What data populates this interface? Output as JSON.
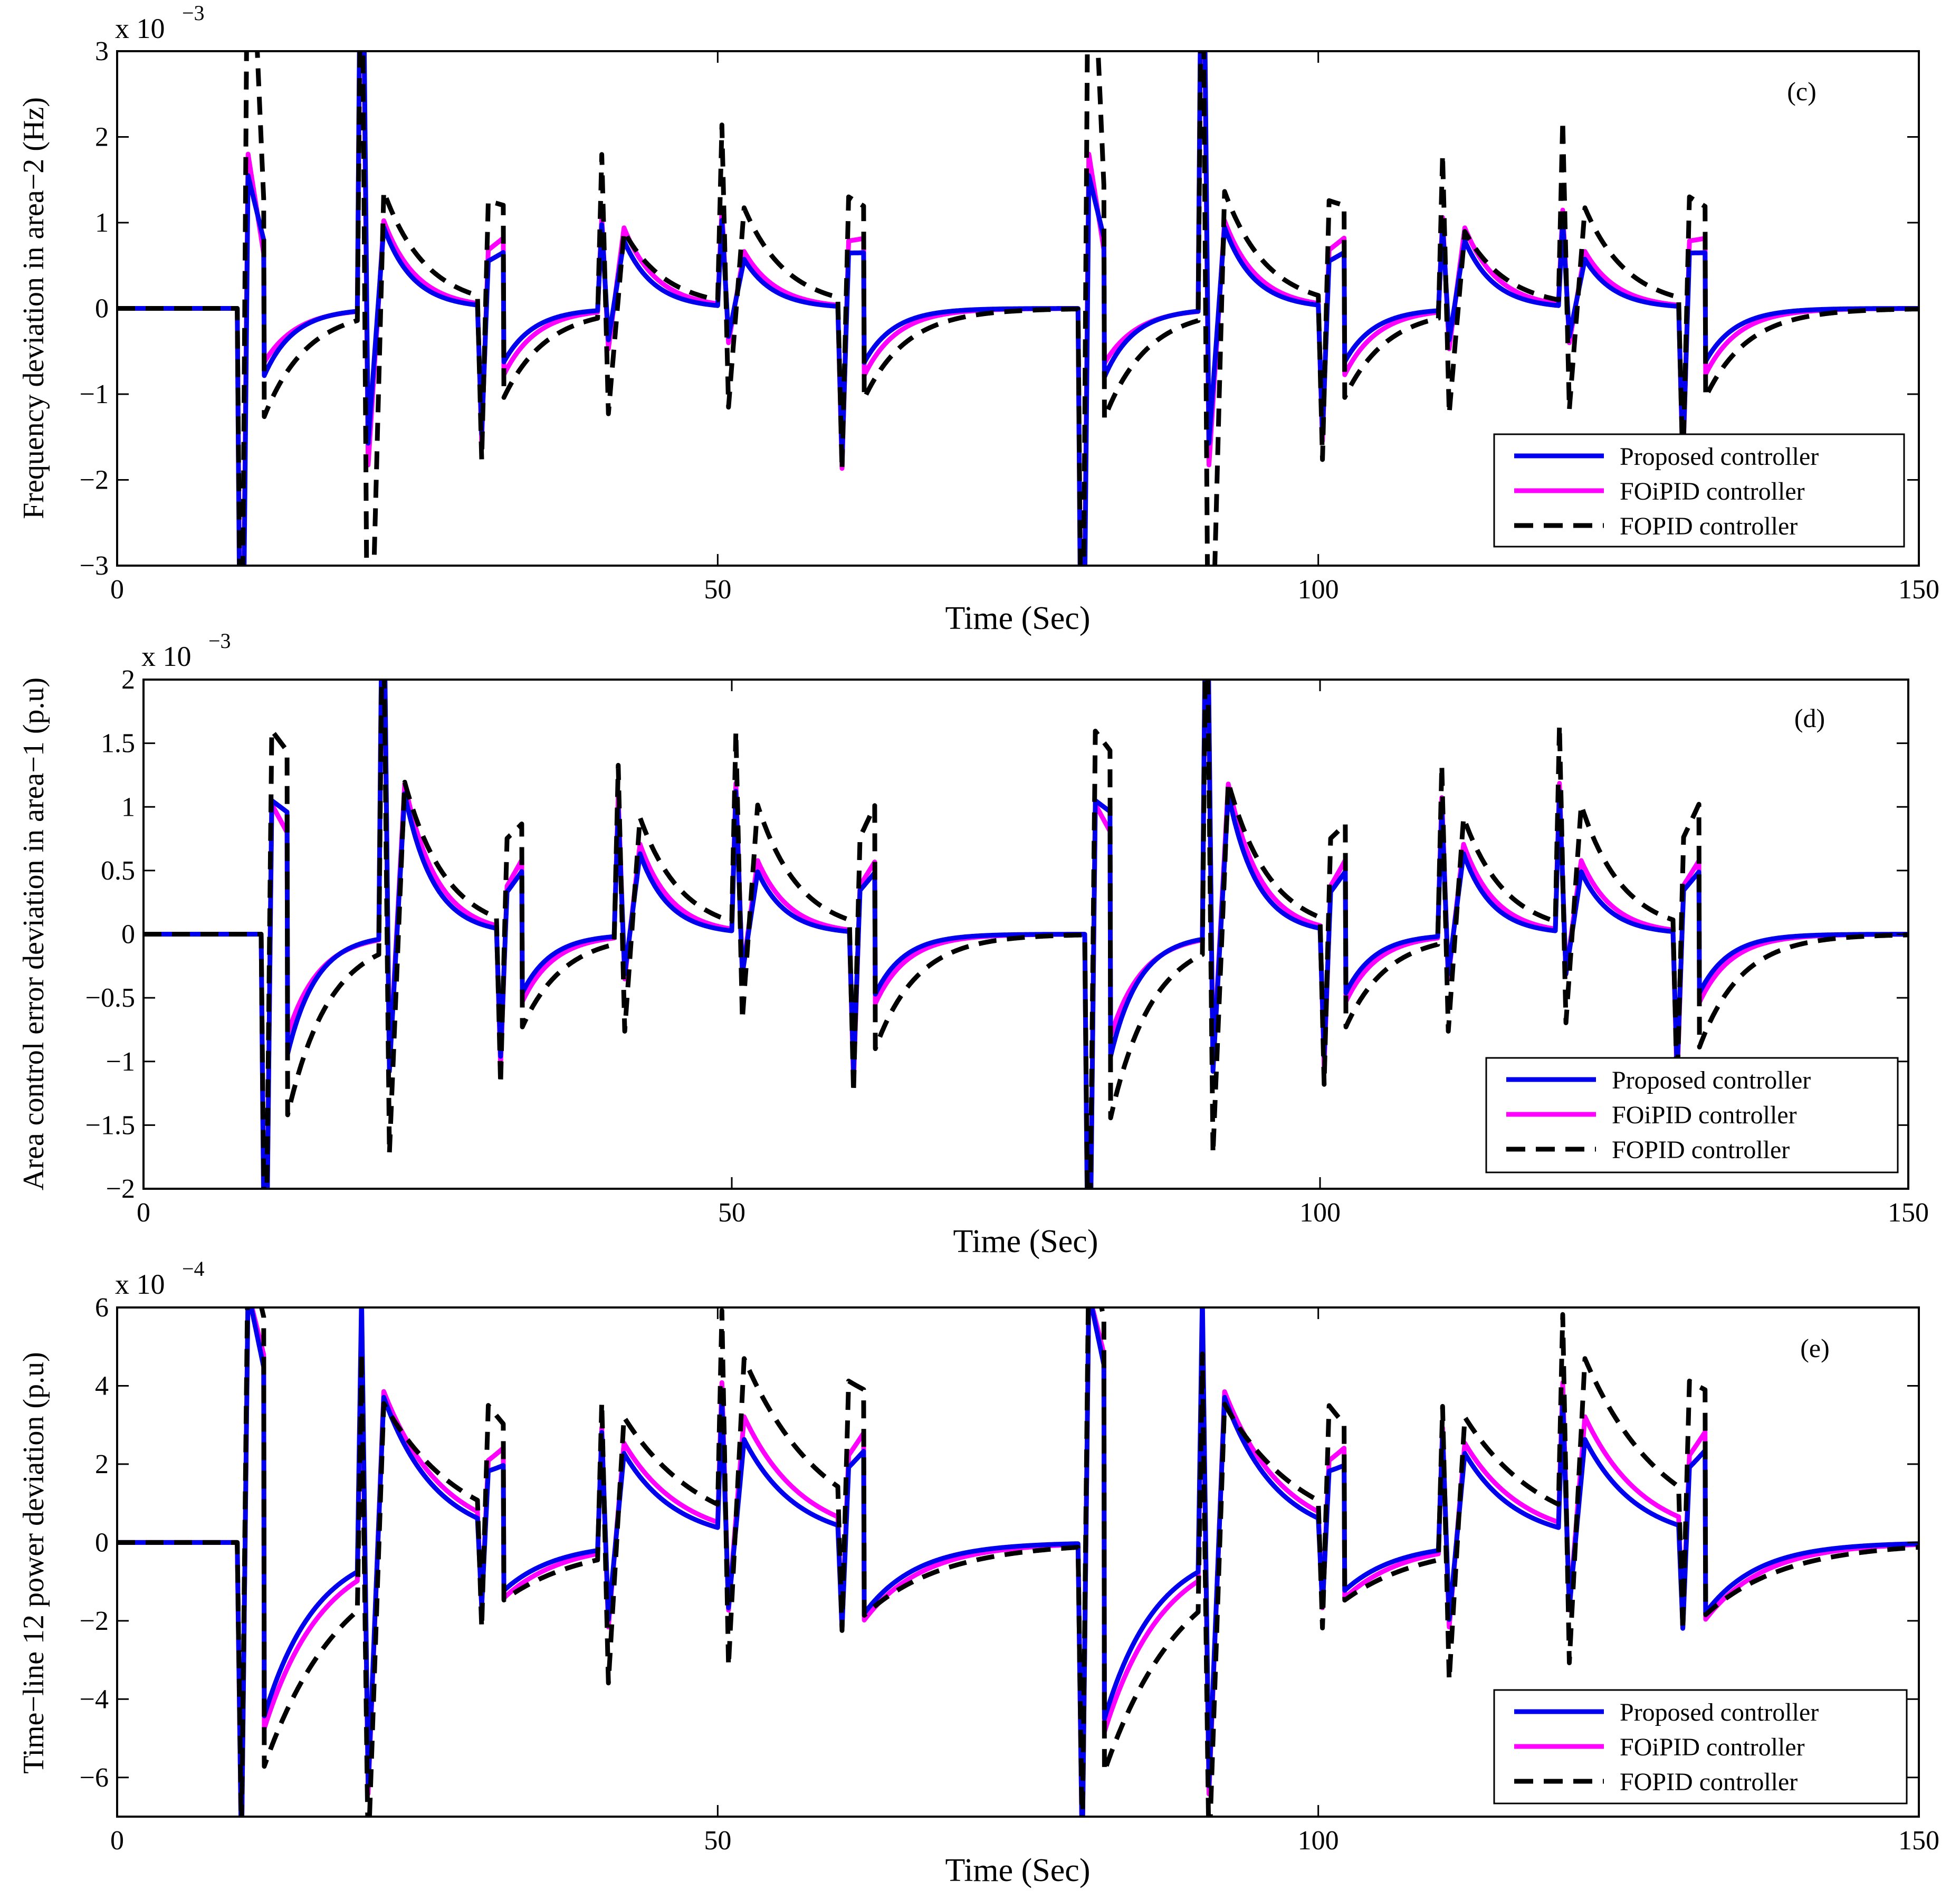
{
  "colors": {
    "proposed": "#0000ee",
    "foipid": "#ff00ff",
    "fopid": "#000000",
    "axes": "#000000",
    "background": "#ffffff"
  },
  "chart_data": [
    {
      "type": "line",
      "panel_label": "(c)",
      "xlabel": "Time (Sec)",
      "ylabel": "Frequency deviation in area−2 (Hz)",
      "exponent_label": "x 10",
      "exponent_power": "−3",
      "xlim": [
        0,
        150
      ],
      "ylim": [
        -3,
        3
      ],
      "x_ticks": [
        0,
        50,
        100,
        150
      ],
      "x_tick_labels": [
        "0",
        "50",
        "100",
        "150"
      ],
      "y_ticks": [
        -3,
        -2,
        -1,
        0,
        1,
        2,
        3
      ],
      "y_tick_labels": [
        "−3",
        "−2",
        "−1",
        "0",
        "1",
        "2",
        "3"
      ],
      "legend_position": "bottom-right",
      "legend": [
        "Proposed controller",
        "FOiPID controller",
        "FOPID controller"
      ],
      "event_times": [
        10,
        20,
        30,
        40,
        50,
        60,
        80,
        90,
        100,
        110,
        120,
        130
      ],
      "event_signs": [
        -1,
        1,
        -1,
        1,
        1,
        -1,
        -1,
        1,
        -1,
        1,
        1,
        -1
      ],
      "series": [
        {
          "name": "Proposed controller",
          "peak": [
            6.2,
            6.2,
            1.5,
            1.0,
            1.0,
            1.8,
            6.2,
            6.2,
            1.5,
            1.0,
            1.0,
            1.8
          ],
          "rebound": [
            0.25,
            0.25,
            0.35,
            0.35,
            0.35,
            0.35,
            0.25,
            0.25,
            0.35,
            0.35,
            0.35,
            0.35
          ],
          "settle": [
            -0.5,
            0.6,
            -0.4,
            0.5,
            0.35,
            -0.4,
            -0.5,
            0.6,
            -0.4,
            0.5,
            0.35,
            -0.4
          ],
          "tau": 4.5
        },
        {
          "name": "FOiPID controller",
          "peak": [
            6.0,
            6.0,
            1.6,
            1.1,
            1.1,
            1.9,
            6.0,
            6.0,
            1.6,
            1.1,
            1.1,
            1.9
          ],
          "rebound": [
            0.3,
            0.3,
            0.4,
            0.4,
            0.4,
            0.4,
            0.3,
            0.3,
            0.4,
            0.4,
            0.4,
            0.4
          ],
          "settle": [
            -0.4,
            0.65,
            -0.5,
            0.6,
            0.4,
            -0.5,
            -0.4,
            0.65,
            -0.5,
            0.6,
            0.4,
            -0.5
          ],
          "tau": 5.0
        },
        {
          "name": "FOPID controller",
          "peak": [
            5.5,
            5.5,
            1.9,
            1.9,
            2.05,
            2.0,
            5.5,
            5.5,
            1.9,
            1.9,
            2.1,
            2.0
          ],
          "rebound": [
            1.0,
            1.0,
            0.6,
            0.6,
            0.6,
            0.6,
            1.0,
            1.0,
            0.6,
            0.6,
            0.6,
            0.6
          ],
          "settle": [
            -0.8,
            0.9,
            -0.7,
            0.6,
            0.7,
            -0.7,
            -0.8,
            0.9,
            -0.7,
            0.6,
            0.7,
            -0.7
          ],
          "tau": 6.5
        }
      ]
    },
    {
      "type": "line",
      "panel_label": "(d)",
      "xlabel": "Time (Sec)",
      "ylabel": "Area control error deviation in area−1 (p.u)",
      "exponent_label": "x 10",
      "exponent_power": "−3",
      "xlim": [
        0,
        150
      ],
      "ylim": [
        -2,
        2
      ],
      "x_ticks": [
        0,
        50,
        100,
        150
      ],
      "x_tick_labels": [
        "0",
        "50",
        "100",
        "150"
      ],
      "y_ticks": [
        -2,
        -1.5,
        -1,
        -0.5,
        0,
        0.5,
        1,
        1.5,
        2
      ],
      "y_tick_labels": [
        "−2",
        "−1.5",
        "−1",
        "−0.5",
        "0",
        "0.5",
        "1",
        "1.5",
        "2"
      ],
      "legend_position": "bottom-right",
      "legend": [
        "Proposed controller",
        "FOiPID controller",
        "FOPID controller"
      ],
      "event_times": [
        10,
        20,
        30,
        40,
        50,
        60,
        80,
        90,
        100,
        110,
        120,
        130
      ],
      "event_signs": [
        -1,
        1,
        -1,
        1,
        1,
        -1,
        -1,
        1,
        -1,
        1,
        1,
        -1
      ],
      "series": [
        {
          "name": "Proposed controller",
          "peak": [
            3.5,
            3.5,
            1.0,
            1.0,
            1.1,
            1.1,
            3.5,
            3.5,
            1.0,
            1.0,
            1.1,
            1.1
          ],
          "rebound": [
            0.3,
            0.3,
            0.3,
            0.3,
            0.3,
            0.3,
            0.3,
            0.3,
            0.3,
            0.3,
            0.3,
            0.3
          ],
          "settle": [
            -0.6,
            0.7,
            -0.3,
            0.4,
            0.3,
            -0.3,
            -0.6,
            0.7,
            -0.3,
            0.4,
            0.3,
            -0.3
          ],
          "tau": 4.5
        },
        {
          "name": "FOiPID controller",
          "peak": [
            3.4,
            3.4,
            1.1,
            1.1,
            1.15,
            1.2,
            3.4,
            3.4,
            1.1,
            1.1,
            1.15,
            1.2
          ],
          "rebound": [
            0.3,
            0.3,
            0.3,
            0.3,
            0.3,
            0.3,
            0.3,
            0.3,
            0.3,
            0.3,
            0.3,
            0.3
          ],
          "settle": [
            -0.5,
            0.75,
            -0.35,
            0.45,
            0.35,
            -0.35,
            -0.5,
            0.75,
            -0.35,
            0.45,
            0.35,
            -0.35
          ],
          "tau": 5.0
        },
        {
          "name": "FOPID controller",
          "peak": [
            3.2,
            3.2,
            1.3,
            1.4,
            1.5,
            1.35,
            3.2,
            3.2,
            1.3,
            1.4,
            1.55,
            1.35
          ],
          "rebound": [
            0.5,
            0.5,
            0.5,
            0.5,
            0.5,
            0.5,
            0.5,
            0.5,
            0.5,
            0.5,
            0.5,
            0.5
          ],
          "settle": [
            -0.9,
            0.8,
            -0.5,
            0.6,
            0.6,
            -0.6,
            -0.9,
            0.8,
            -0.5,
            0.6,
            0.6,
            -0.6
          ],
          "tau": 6.5
        }
      ]
    },
    {
      "type": "line",
      "panel_label": "(e)",
      "xlabel": "Time (Sec)",
      "ylabel": "Time−line 12 power deviation (p.u)",
      "exponent_label": "x 10",
      "exponent_power": "−4",
      "xlim": [
        0,
        150
      ],
      "ylim": [
        -7,
        6
      ],
      "x_ticks": [
        0,
        50,
        100,
        150
      ],
      "x_tick_labels": [
        "0",
        "50",
        "100",
        "150"
      ],
      "y_ticks": [
        -6,
        -4,
        -2,
        0,
        2,
        4,
        6
      ],
      "y_tick_labels": [
        "−6",
        "−4",
        "−2",
        "0",
        "2",
        "4",
        "6"
      ],
      "legend_position": "bottom-right",
      "legend": [
        "Proposed controller",
        "FOiPID controller",
        "FOPID controller"
      ],
      "event_times": [
        10,
        20,
        30,
        40,
        50,
        60,
        80,
        90,
        100,
        110,
        120,
        130
      ],
      "event_signs": [
        -1,
        1,
        -1,
        1,
        1,
        -1,
        -1,
        1,
        -1,
        1,
        1,
        -1
      ],
      "series": [
        {
          "name": "Proposed controller",
          "peak": [
            8.0,
            7.0,
            2.2,
            3.0,
            3.3,
            2.6,
            8.0,
            7.0,
            2.2,
            3.0,
            3.3,
            2.6
          ],
          "rebound": [
            0.8,
            0.8,
            0.6,
            0.6,
            0.6,
            0.6,
            0.8,
            0.8,
            0.6,
            0.6,
            0.6,
            0.6
          ],
          "settle": [
            -2.8,
            2.6,
            -1.0,
            1.5,
            1.5,
            -1.3,
            -2.8,
            2.6,
            -1.0,
            1.5,
            1.5,
            -1.3
          ],
          "tau": 8.0
        },
        {
          "name": "FOiPID controller",
          "peak": [
            8.0,
            7.0,
            2.4,
            3.2,
            3.6,
            2.8,
            8.0,
            7.0,
            2.4,
            3.2,
            3.6,
            2.8
          ],
          "rebound": [
            0.8,
            0.8,
            0.6,
            0.6,
            0.6,
            0.6,
            0.8,
            0.8,
            0.6,
            0.6,
            0.6,
            0.6
          ],
          "settle": [
            -3.0,
            2.8,
            -1.2,
            1.7,
            1.8,
            -1.5,
            -3.0,
            2.8,
            -1.2,
            1.7,
            1.8,
            -1.5
          ],
          "tau": 9.0
        },
        {
          "name": "FOPID controller",
          "peak": [
            7.5,
            6.5,
            3.2,
            4.0,
            5.0,
            3.6,
            7.5,
            6.5,
            3.2,
            3.9,
            4.9,
            3.6
          ],
          "rebound": [
            1.0,
            1.0,
            0.8,
            0.8,
            0.8,
            0.8,
            1.0,
            1.0,
            0.8,
            0.8,
            0.8,
            0.8
          ],
          "settle": [
            -3.6,
            3.0,
            -1.4,
            2.2,
            2.5,
            -1.8,
            -3.6,
            3.0,
            -1.4,
            2.2,
            2.5,
            -1.8
          ],
          "tau": 12.0
        }
      ]
    }
  ]
}
